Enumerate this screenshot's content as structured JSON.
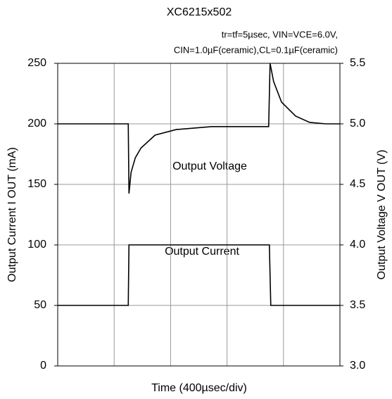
{
  "chart_data": {
    "type": "line",
    "title": "XC6215x502",
    "subtitle": [
      "tr=tf=5µsec, VIN=VCE=6.0V,",
      "CIN=1.0µF(ceramic),CL=0.1µF(ceramic)"
    ],
    "xlabel": "Time (400µsec/div)",
    "ylabel": "Output Current I OUT (mA)",
    "y2label": "Output Voltage V OUT (V)",
    "annotations": [
      "Output Voltage",
      "Output Current"
    ],
    "xlim": [
      0,
      2000
    ],
    "xticks": [
      0,
      400,
      800,
      1200,
      1600,
      2000
    ],
    "ylim": [
      0,
      250
    ],
    "yticks": [
      0,
      50,
      100,
      150,
      200,
      250
    ],
    "y2lim": [
      3,
      5.5
    ],
    "y2ticks": [
      {
        "value": 3,
        "label": "3.0"
      },
      3.5,
      {
        "value": 4,
        "label": "4.0"
      },
      4.5,
      {
        "value": 5,
        "label": "5.0"
      },
      5.5
    ],
    "grid": true,
    "series": [
      {
        "name": "Output Current",
        "color": "#000000",
        "axis": "y",
        "x": [
          0,
          500,
          505,
          1500,
          1510,
          2000
        ],
        "values": [
          50,
          50,
          100,
          100,
          50,
          50
        ]
      },
      {
        "name": "Output Voltage",
        "color": "#000000",
        "axis": "y2",
        "x": [
          0,
          500,
          505,
          520,
          550,
          590,
          690,
          840,
          1090,
          1495,
          1505,
          1530,
          1586,
          1686,
          1786,
          1900,
          2000
        ],
        "values": [
          5.0,
          5.0,
          4.424,
          4.6,
          4.72,
          4.8,
          4.907,
          4.953,
          4.977,
          4.977,
          5.5,
          5.35,
          5.18,
          5.064,
          5.012,
          5.0,
          5.0
        ]
      }
    ]
  }
}
